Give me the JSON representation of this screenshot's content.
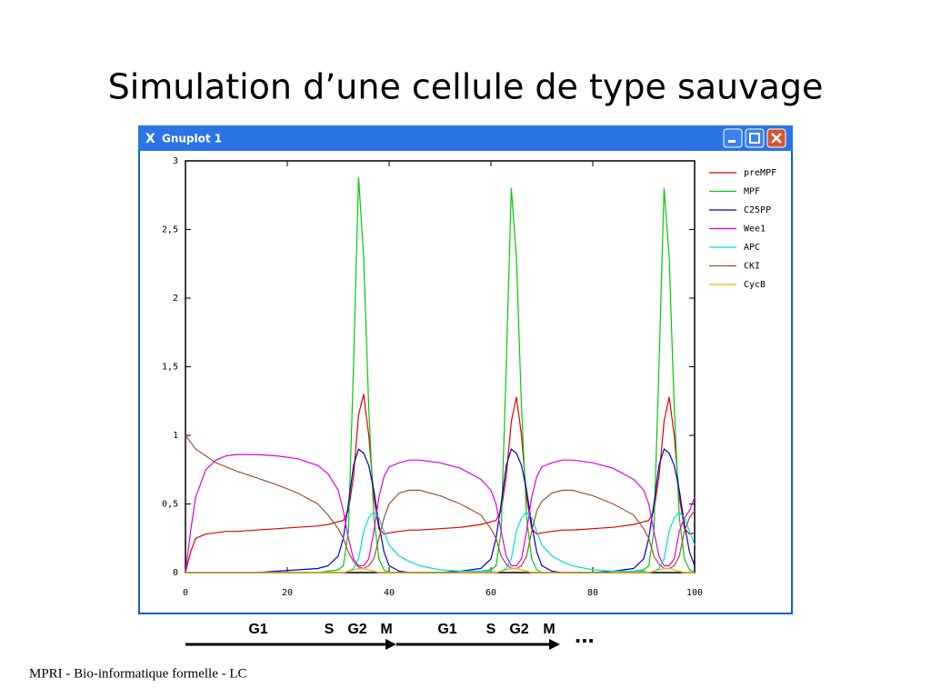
{
  "slide": {
    "title": "Simulation d’une cellule de type sauvage",
    "footer": "MPRI - Bio-informatique formelle - LC"
  },
  "window": {
    "title": "Gnuplot 1"
  },
  "phases": [
    "G1",
    "S",
    "G2",
    "M",
    "G1",
    "S",
    "G2",
    "M"
  ],
  "more": "...",
  "chart_data": {
    "type": "line",
    "x": [
      0,
      1,
      2,
      4,
      6,
      8,
      10,
      14,
      18,
      22,
      26,
      28,
      30,
      31,
      32,
      33,
      34,
      35,
      36,
      37,
      38,
      39,
      40,
      42,
      44,
      46,
      50,
      54,
      58,
      60,
      61,
      62,
      63,
      64,
      65,
      66,
      67,
      68,
      69,
      70,
      72,
      74,
      76,
      80,
      84,
      88,
      90,
      91,
      92,
      93,
      94,
      95,
      96,
      97,
      98,
      99,
      100
    ],
    "xlim": [
      0,
      100
    ],
    "xticks": [
      0,
      20,
      40,
      60,
      80,
      100
    ],
    "ylim": [
      0,
      3
    ],
    "yticks": [
      0,
      {
        "value": 0.5,
        "label": "0,5"
      },
      1,
      {
        "value": 1.5,
        "label": "1,5"
      },
      2,
      {
        "value": 2.5,
        "label": "2,5"
      },
      3
    ],
    "grid": false,
    "legend": "right",
    "series": [
      {
        "name": "preMPF",
        "color": "#e00000",
        "values": [
          0,
          0.15,
          0.25,
          0.28,
          0.29,
          0.3,
          0.3,
          0.31,
          0.32,
          0.33,
          0.34,
          0.35,
          0.37,
          0.38,
          0.45,
          0.7,
          1.15,
          1.3,
          1.0,
          0.55,
          0.32,
          0.28,
          0.29,
          0.3,
          0.31,
          0.31,
          0.32,
          0.33,
          0.35,
          0.37,
          0.38,
          0.45,
          0.7,
          1.1,
          1.28,
          1.0,
          0.55,
          0.32,
          0.28,
          0.29,
          0.3,
          0.31,
          0.31,
          0.32,
          0.33,
          0.35,
          0.37,
          0.38,
          0.45,
          0.7,
          1.1,
          1.28,
          1.0,
          0.55,
          0.32,
          0.28,
          0.29
        ]
      },
      {
        "name": "MPF",
        "color": "#00cc00",
        "values": [
          0,
          0,
          0,
          0,
          0,
          0,
          0,
          0,
          0,
          0,
          0,
          0.01,
          0.02,
          0.05,
          0.3,
          1.5,
          2.88,
          2.3,
          1.2,
          0.4,
          0.1,
          0.02,
          0,
          0,
          0,
          0,
          0,
          0,
          0.01,
          0.02,
          0.05,
          0.3,
          1.5,
          2.8,
          2.3,
          1.2,
          0.4,
          0.1,
          0.02,
          0,
          0,
          0,
          0,
          0,
          0,
          0.01,
          0.02,
          0.05,
          0.3,
          1.5,
          2.8,
          2.3,
          1.2,
          0.4,
          0.1,
          0.02,
          0
        ]
      },
      {
        "name": "C25PP",
        "color": "#0000cc",
        "values": [
          0,
          0,
          0,
          0,
          0,
          0,
          0,
          0,
          0.01,
          0.02,
          0.03,
          0.05,
          0.12,
          0.25,
          0.5,
          0.78,
          0.9,
          0.87,
          0.78,
          0.6,
          0.35,
          0.15,
          0.05,
          0.01,
          0,
          0,
          0,
          0.01,
          0.03,
          0.1,
          0.25,
          0.5,
          0.78,
          0.9,
          0.87,
          0.78,
          0.6,
          0.35,
          0.15,
          0.05,
          0.01,
          0,
          0,
          0,
          0.01,
          0.03,
          0.1,
          0.25,
          0.5,
          0.78,
          0.9,
          0.87,
          0.78,
          0.6,
          0.35,
          0.15,
          0.05
        ]
      },
      {
        "name": "Wee1",
        "color": "#e000e0",
        "values": [
          0,
          0.3,
          0.55,
          0.75,
          0.82,
          0.85,
          0.86,
          0.86,
          0.85,
          0.83,
          0.78,
          0.72,
          0.6,
          0.45,
          0.25,
          0.1,
          0.05,
          0.05,
          0.1,
          0.3,
          0.55,
          0.7,
          0.77,
          0.8,
          0.82,
          0.82,
          0.8,
          0.76,
          0.68,
          0.6,
          0.5,
          0.3,
          0.12,
          0.05,
          0.05,
          0.1,
          0.3,
          0.55,
          0.7,
          0.77,
          0.8,
          0.82,
          0.82,
          0.8,
          0.76,
          0.68,
          0.6,
          0.5,
          0.3,
          0.12,
          0.05,
          0.05,
          0.1,
          0.3,
          0.4,
          0.45,
          0.55
        ]
      },
      {
        "name": "APC",
        "color": "#00dddd",
        "values": [
          0,
          0,
          0,
          0,
          0,
          0,
          0,
          0,
          0,
          0,
          0,
          0,
          0,
          0,
          0.01,
          0.03,
          0.1,
          0.3,
          0.4,
          0.44,
          0.4,
          0.3,
          0.2,
          0.12,
          0.08,
          0.05,
          0.02,
          0.01,
          0.01,
          0.01,
          0,
          0.01,
          0.03,
          0.1,
          0.3,
          0.4,
          0.44,
          0.4,
          0.3,
          0.2,
          0.12,
          0.08,
          0.05,
          0.02,
          0.01,
          0.01,
          0.01,
          0,
          0.01,
          0.03,
          0.1,
          0.3,
          0.4,
          0.44,
          0.4,
          0.3,
          0.2
        ]
      },
      {
        "name": "CKI",
        "color": "#a0522d",
        "values": [
          1.0,
          0.95,
          0.9,
          0.85,
          0.8,
          0.77,
          0.74,
          0.69,
          0.64,
          0.58,
          0.5,
          0.42,
          0.32,
          0.25,
          0.15,
          0.08,
          0.04,
          0.03,
          0.05,
          0.1,
          0.25,
          0.4,
          0.5,
          0.58,
          0.6,
          0.6,
          0.56,
          0.5,
          0.42,
          0.32,
          0.25,
          0.12,
          0.06,
          0.03,
          0.03,
          0.05,
          0.12,
          0.3,
          0.45,
          0.52,
          0.58,
          0.6,
          0.6,
          0.56,
          0.5,
          0.42,
          0.32,
          0.25,
          0.12,
          0.06,
          0.03,
          0.03,
          0.05,
          0.12,
          0.3,
          0.4,
          0.45
        ]
      },
      {
        "name": "CycB",
        "color": "#ffaa00",
        "values": [
          0,
          0,
          0,
          0,
          0,
          0,
          0,
          0,
          0,
          0,
          0,
          0,
          0,
          0,
          0.01,
          0.02,
          0.03,
          0.03,
          0.02,
          0.01,
          0,
          0,
          0,
          0,
          0,
          0,
          0,
          0,
          0,
          0,
          0,
          0.01,
          0.02,
          0.03,
          0.03,
          0.02,
          0.01,
          0,
          0,
          0,
          0,
          0,
          0,
          0,
          0,
          0,
          0,
          0,
          0.01,
          0.02,
          0.03,
          0.03,
          0.02,
          0.01,
          0,
          0,
          0
        ]
      }
    ]
  }
}
